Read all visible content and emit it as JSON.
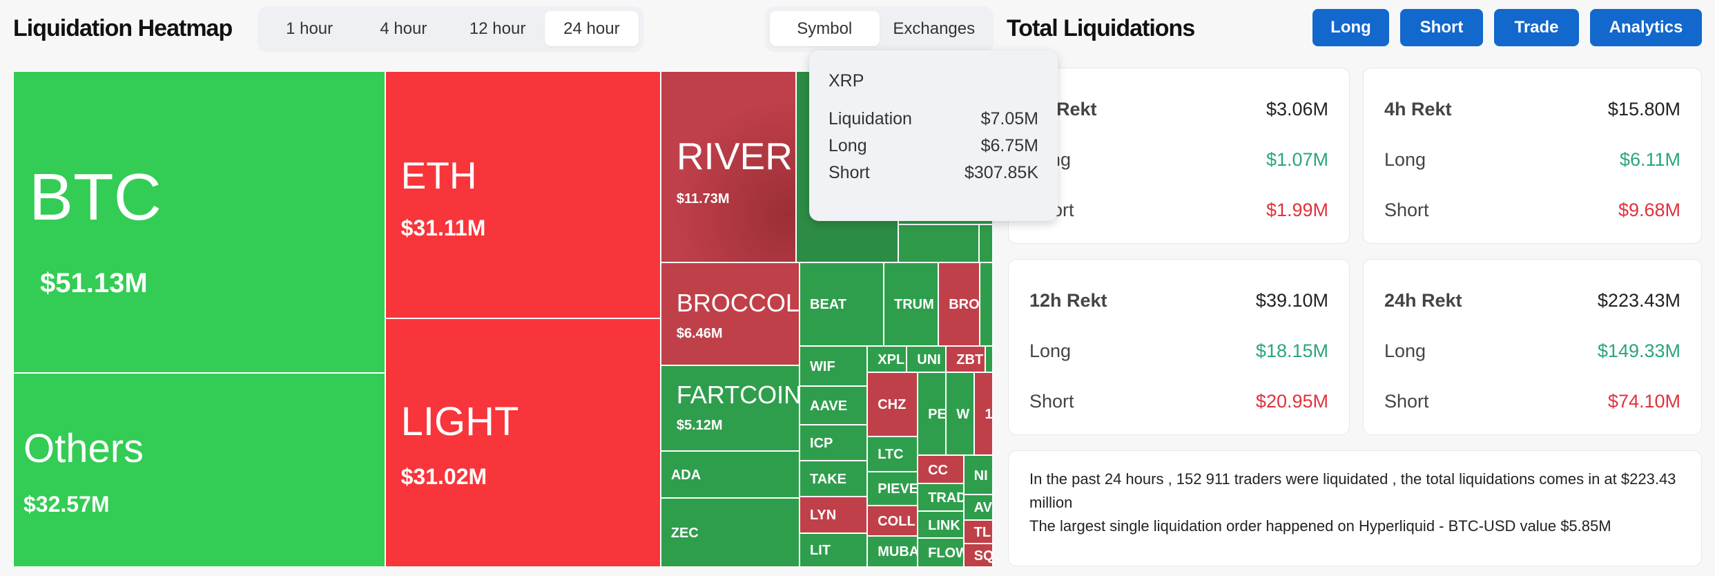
{
  "heatmap": {
    "title": "Liquidation Heatmap",
    "time_tabs": [
      {
        "label": "1 hour",
        "active": false
      },
      {
        "label": "4 hour",
        "active": false
      },
      {
        "label": "12 hour",
        "active": false
      },
      {
        "label": "24 hour",
        "active": true
      }
    ],
    "view_tabs": [
      {
        "label": "Symbol",
        "active": true
      },
      {
        "label": "Exchanges",
        "active": false
      }
    ],
    "colors": {
      "long_heavy": "#33cc55",
      "short_heavy": "#f8353a",
      "dark_green": "#2f9e4c",
      "dark_red": "#c0404a"
    },
    "cells": [
      {
        "symbol": "BTC",
        "value": "$51.13M",
        "color": "#33cc55"
      },
      {
        "symbol": "Others",
        "value": "$32.57M",
        "color": "#33cc55"
      },
      {
        "symbol": "ETH",
        "value": "$31.11M",
        "color": "#f8353a"
      },
      {
        "symbol": "LIGHT",
        "value": "$31.02M",
        "color": "#f8353a"
      },
      {
        "symbol": "RIVER",
        "value": "$11.73M",
        "color": "#b93a45"
      },
      {
        "symbol": "",
        "value": "",
        "color": "#2c8c45"
      },
      {
        "symbol": "",
        "value": "",
        "color": "#2f9a4a"
      },
      {
        "symbol": "",
        "value": "",
        "color": "#2f9a4a"
      },
      {
        "symbol": "",
        "value": "",
        "color": "#2f9a4a"
      },
      {
        "symbol": "BROCCOLI",
        "value": "$6.46M",
        "color": "#c0404a"
      },
      {
        "symbol": "FARTCOIN",
        "value": "$5.12M",
        "color": "#2f9e4c"
      },
      {
        "symbol": "ADA",
        "value": "",
        "color": "#2f9e4c"
      },
      {
        "symbol": "ZEC",
        "value": "",
        "color": "#2f9e4c"
      },
      {
        "symbol": "BEAT",
        "value": "",
        "color": "#2f9e4c"
      },
      {
        "symbol": "TRUM",
        "value": "",
        "color": "#2f9e4c"
      },
      {
        "symbol": "BRO",
        "value": "",
        "color": "#c0404a"
      },
      {
        "symbol": "",
        "value": "",
        "color": "#2f9e4c"
      },
      {
        "symbol": "WIF",
        "value": "",
        "color": "#2f9e4c"
      },
      {
        "symbol": "AAVE",
        "value": "",
        "color": "#2f9e4c"
      },
      {
        "symbol": "ICP",
        "value": "",
        "color": "#2f9e4c"
      },
      {
        "symbol": "TAKE",
        "value": "",
        "color": "#2f9e4c"
      },
      {
        "symbol": "LYN",
        "value": "",
        "color": "#c0404a"
      },
      {
        "symbol": "LIT",
        "value": "",
        "color": "#2f9e4c"
      },
      {
        "symbol": "XPL",
        "value": "",
        "color": "#2f9e4c"
      },
      {
        "symbol": "UNI",
        "value": "",
        "color": "#2f9e4c"
      },
      {
        "symbol": "ZBT",
        "value": "",
        "color": "#c0404a"
      },
      {
        "symbol": "",
        "value": "",
        "color": "#2f9e4c"
      },
      {
        "symbol": "CHZ",
        "value": "",
        "color": "#c0404a"
      },
      {
        "symbol": "LTC",
        "value": "",
        "color": "#2f9e4c"
      },
      {
        "symbol": "PIEVE",
        "value": "",
        "color": "#2f9e4c"
      },
      {
        "symbol": "COLL",
        "value": "",
        "color": "#c0404a"
      },
      {
        "symbol": "MUBA",
        "value": "",
        "color": "#2f9e4c"
      },
      {
        "symbol": "PE",
        "value": "",
        "color": "#2f9e4c"
      },
      {
        "symbol": "W",
        "value": "",
        "color": "#2f9e4c"
      },
      {
        "symbol": "1",
        "value": "",
        "color": "#c0404a"
      },
      {
        "symbol": "CC",
        "value": "",
        "color": "#c0404a"
      },
      {
        "symbol": "TRAD",
        "value": "",
        "color": "#2f9e4c"
      },
      {
        "symbol": "LINK",
        "value": "",
        "color": "#2f9e4c"
      },
      {
        "symbol": "FLOW",
        "value": "",
        "color": "#2f9e4c"
      },
      {
        "symbol": "NI",
        "value": "",
        "color": "#2f9e4c"
      },
      {
        "symbol": "AV",
        "value": "",
        "color": "#2f9e4c"
      },
      {
        "symbol": "TL",
        "value": "",
        "color": "#c0404a"
      },
      {
        "symbol": "SQ",
        "value": "",
        "color": "#c0404a"
      }
    ],
    "tooltip": {
      "symbol": "XRP",
      "rows": [
        {
          "label": "Liquidation",
          "value": "$7.05M"
        },
        {
          "label": "Long",
          "value": "$6.75M"
        },
        {
          "label": "Short",
          "value": "$307.85K"
        }
      ]
    }
  },
  "totals": {
    "title": "Total Liquidations",
    "buttons": [
      "Long",
      "Short",
      "Trade",
      "Analytics"
    ],
    "button_color": "#1268cc",
    "cards": [
      {
        "label": "1h Rekt",
        "total": "$3.06M",
        "long_label": "Long",
        "long": "$1.07M",
        "short_label": "Short",
        "short": "$1.99M"
      },
      {
        "label": "4h Rekt",
        "total": "$15.80M",
        "long_label": "Long",
        "long": "$6.11M",
        "short_label": "Short",
        "short": "$9.68M"
      },
      {
        "label": "12h Rekt",
        "total": "$39.10M",
        "long_label": "Long",
        "long": "$18.15M",
        "short_label": "Short",
        "short": "$20.95M"
      },
      {
        "label": "24h Rekt",
        "total": "$223.43M",
        "long_label": "Long",
        "long": "$149.33M",
        "short_label": "Short",
        "short": "$74.10M"
      }
    ],
    "long_color": "#2aa57a",
    "short_color": "#e0323c",
    "summary": {
      "line1": "In the past 24 hours , 152 911 traders were liquidated , the total liquidations comes in at $223.43 million",
      "line2": "The largest single liquidation order happened on Hyperliquid - BTC-USD value $5.85M"
    }
  }
}
